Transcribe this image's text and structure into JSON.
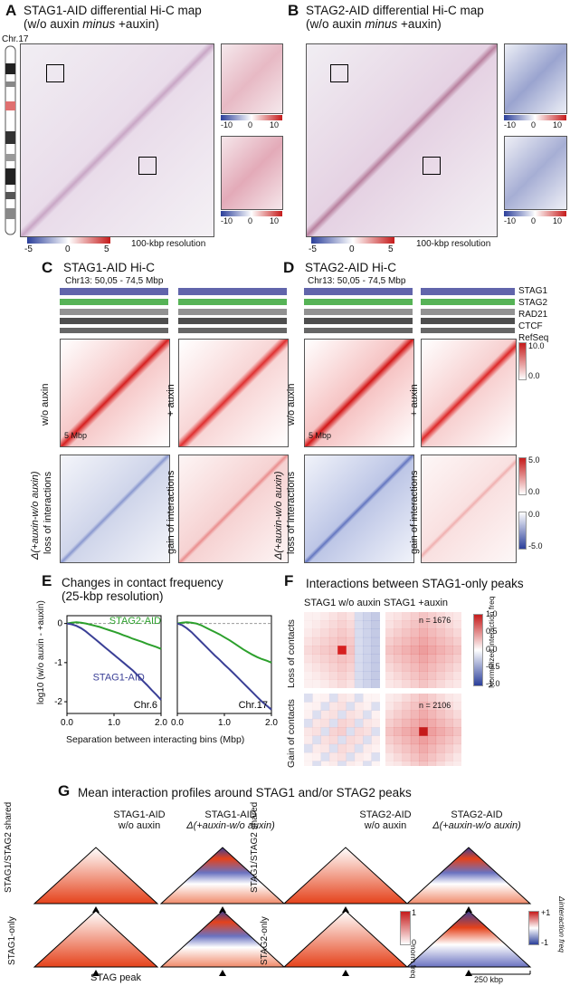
{
  "panels": {
    "a": {
      "letter": "A",
      "title_line1": "STAG1-AID differential Hi-C map",
      "title_line2": "(w/o auxin ",
      "title_minus": "minus",
      "title_end": " +auxin)",
      "chrom": "Chr.17",
      "scale_ticks": [
        "-5",
        "0",
        "5"
      ],
      "inset_ticks": [
        "-10",
        "0",
        "10"
      ],
      "resolution": "100-kbp resolution"
    },
    "b": {
      "letter": "B",
      "title_line1": "STAG2-AID differential Hi-C map",
      "title_line2": "(w/o auxin ",
      "title_minus": "minus",
      "title_end": " +auxin)",
      "scale_ticks": [
        "-5",
        "0",
        "5"
      ],
      "inset_ticks": [
        "-10",
        "0",
        "10"
      ],
      "resolution": "100-kbp resolution"
    },
    "c": {
      "letter": "C",
      "title": "STAG1-AID Hi-C",
      "region": "Chr13: 50,05 - 74,5 Mbp",
      "row1_left": "w/o auxin",
      "row1_right": "+ auxin",
      "row2_left_a": "Δ(+auxin-w/o auxin)",
      "row2_left_b": "loss of interactions",
      "row2_right": "gain of interactions",
      "scalebar": "5 Mbp"
    },
    "d": {
      "letter": "D",
      "title": "STAG2-AID Hi-C",
      "region": "Chr13: 50,05 - 74,5 Mbp",
      "row1_left": "w/o auxin",
      "row1_right": "+ auxin",
      "row2_left_a": "Δ(+auxin-w/o auxin)",
      "row2_left_b": "loss of interactions",
      "row2_right": "gain of interactions",
      "scalebar": "5 Mbp",
      "tracks": [
        "STAG1",
        "STAG2",
        "RAD21",
        "CTCF",
        "RefSeq"
      ],
      "scale1": [
        "10.0",
        "0.0"
      ],
      "scale2": [
        "5.0",
        "0.0"
      ],
      "scale3": [
        "0.0",
        "-5.0"
      ]
    },
    "e": {
      "letter": "E",
      "title_line1": "Changes in contact frequency",
      "title_line2": "(25-kbp resolution)",
      "ylabel": "log10 (w/o auxin - +auxin)",
      "xlabel": "Separation between interacting bins (Mbp)"
    },
    "f": {
      "letter": "F",
      "title": "Interactions between STAG1-only peaks",
      "col1": "STAG1 w/o auxin",
      "col2": "STAG1 +auxin",
      "row1": "Loss of contacts",
      "row2": "Gain of contacts",
      "n1": "n = 1676",
      "n2": "n = 2106",
      "cbar_label": "Normalized interaction freq",
      "cbar_ticks": [
        "1.0",
        "0.5",
        "0.0",
        "-0.5",
        "-1.0"
      ]
    },
    "g": {
      "letter": "G",
      "title": "Mean interaction profiles around STAG1 and/or STAG2 peaks",
      "col1a": "STAG1-AID",
      "col1b": "w/o auxin",
      "col2a": "STAG1-AID",
      "col2b": "Δ(+auxin-w/o auxin)",
      "col3a": "STAG2-AID",
      "col3b": "w/o auxin",
      "col4a": "STAG2-AID",
      "col4b": "Δ(+auxin-w/o auxin)",
      "row1": "STAG1/STAG2 shared",
      "row2": "STAG1-only",
      "row3": "STAG2-only",
      "peak": "STAG peak",
      "scale": "250 kbp",
      "norm_label": "norm freq",
      "norm_ticks": [
        "1",
        "0"
      ],
      "delta_label": "Δinteraction freq",
      "delta_ticks": [
        "+1",
        "-1"
      ]
    }
  },
  "chart_data": [
    {
      "type": "line",
      "title": "Chr.6",
      "xlabel": "Separation between interacting bins (Mbp)",
      "ylabel": "log10 (w/o auxin - +auxin)",
      "xlim": [
        0,
        2.0
      ],
      "ylim": [
        -2.3,
        0.2
      ],
      "xticks": [
        "0.0",
        "1.0",
        "2.0"
      ],
      "yticks": [
        "0",
        "-1",
        "-2"
      ],
      "series": [
        {
          "name": "STAG2-AID",
          "color": "#2ca02c",
          "x": [
            0,
            0.1,
            0.2,
            0.3,
            0.4,
            0.5,
            0.6,
            0.7,
            0.8,
            0.9,
            1.0,
            1.1,
            1.2,
            1.3,
            1.4,
            1.5,
            1.6,
            1.7,
            1.8,
            1.9,
            2.0
          ],
          "y": [
            0,
            0.02,
            0.03,
            0.02,
            0.0,
            -0.03,
            -0.06,
            -0.09,
            -0.13,
            -0.17,
            -0.21,
            -0.25,
            -0.3,
            -0.34,
            -0.39,
            -0.43,
            -0.47,
            -0.52,
            -0.56,
            -0.6,
            -0.65
          ]
        },
        {
          "name": "STAG1-AID",
          "color": "#3a3f96",
          "x": [
            0,
            0.1,
            0.2,
            0.3,
            0.4,
            0.5,
            0.6,
            0.7,
            0.8,
            0.9,
            1.0,
            1.1,
            1.2,
            1.3,
            1.4,
            1.5,
            1.6,
            1.7,
            1.8,
            1.9,
            2.0
          ],
          "y": [
            0,
            -0.02,
            -0.06,
            -0.12,
            -0.2,
            -0.3,
            -0.4,
            -0.5,
            -0.6,
            -0.7,
            -0.8,
            -0.9,
            -1.0,
            -1.1,
            -1.2,
            -1.32,
            -1.45,
            -1.57,
            -1.7,
            -1.82,
            -1.95
          ]
        }
      ]
    },
    {
      "type": "line",
      "title": "Chr.17",
      "xlabel": "Separation between interacting bins (Mbp)",
      "xlim": [
        0,
        2.0
      ],
      "ylim": [
        -2.3,
        0.2
      ],
      "xticks": [
        "0.0",
        "1.0",
        "2.0"
      ],
      "yticks": [
        "0",
        "-1",
        "-2"
      ],
      "series": [
        {
          "name": "STAG2-AID",
          "color": "#2ca02c",
          "x": [
            0,
            0.1,
            0.2,
            0.3,
            0.4,
            0.5,
            0.6,
            0.7,
            0.8,
            0.9,
            1.0,
            1.1,
            1.2,
            1.3,
            1.4,
            1.5,
            1.6,
            1.7,
            1.8,
            1.9,
            2.0
          ],
          "y": [
            0,
            0.02,
            0.03,
            0.02,
            0.0,
            -0.04,
            -0.1,
            -0.16,
            -0.22,
            -0.28,
            -0.35,
            -0.42,
            -0.5,
            -0.58,
            -0.66,
            -0.73,
            -0.8,
            -0.86,
            -0.91,
            -0.95,
            -1.0
          ]
        },
        {
          "name": "STAG1-AID",
          "color": "#3a3f96",
          "x": [
            0,
            0.1,
            0.2,
            0.3,
            0.4,
            0.5,
            0.6,
            0.7,
            0.8,
            0.9,
            1.0,
            1.1,
            1.2,
            1.3,
            1.4,
            1.5,
            1.6,
            1.7,
            1.8,
            1.9,
            2.0
          ],
          "y": [
            0,
            -0.04,
            -0.12,
            -0.22,
            -0.34,
            -0.46,
            -0.58,
            -0.7,
            -0.82,
            -0.93,
            -1.05,
            -1.16,
            -1.28,
            -1.4,
            -1.52,
            -1.64,
            -1.76,
            -1.88,
            -2.0,
            -2.1,
            -2.2
          ]
        }
      ]
    }
  ]
}
